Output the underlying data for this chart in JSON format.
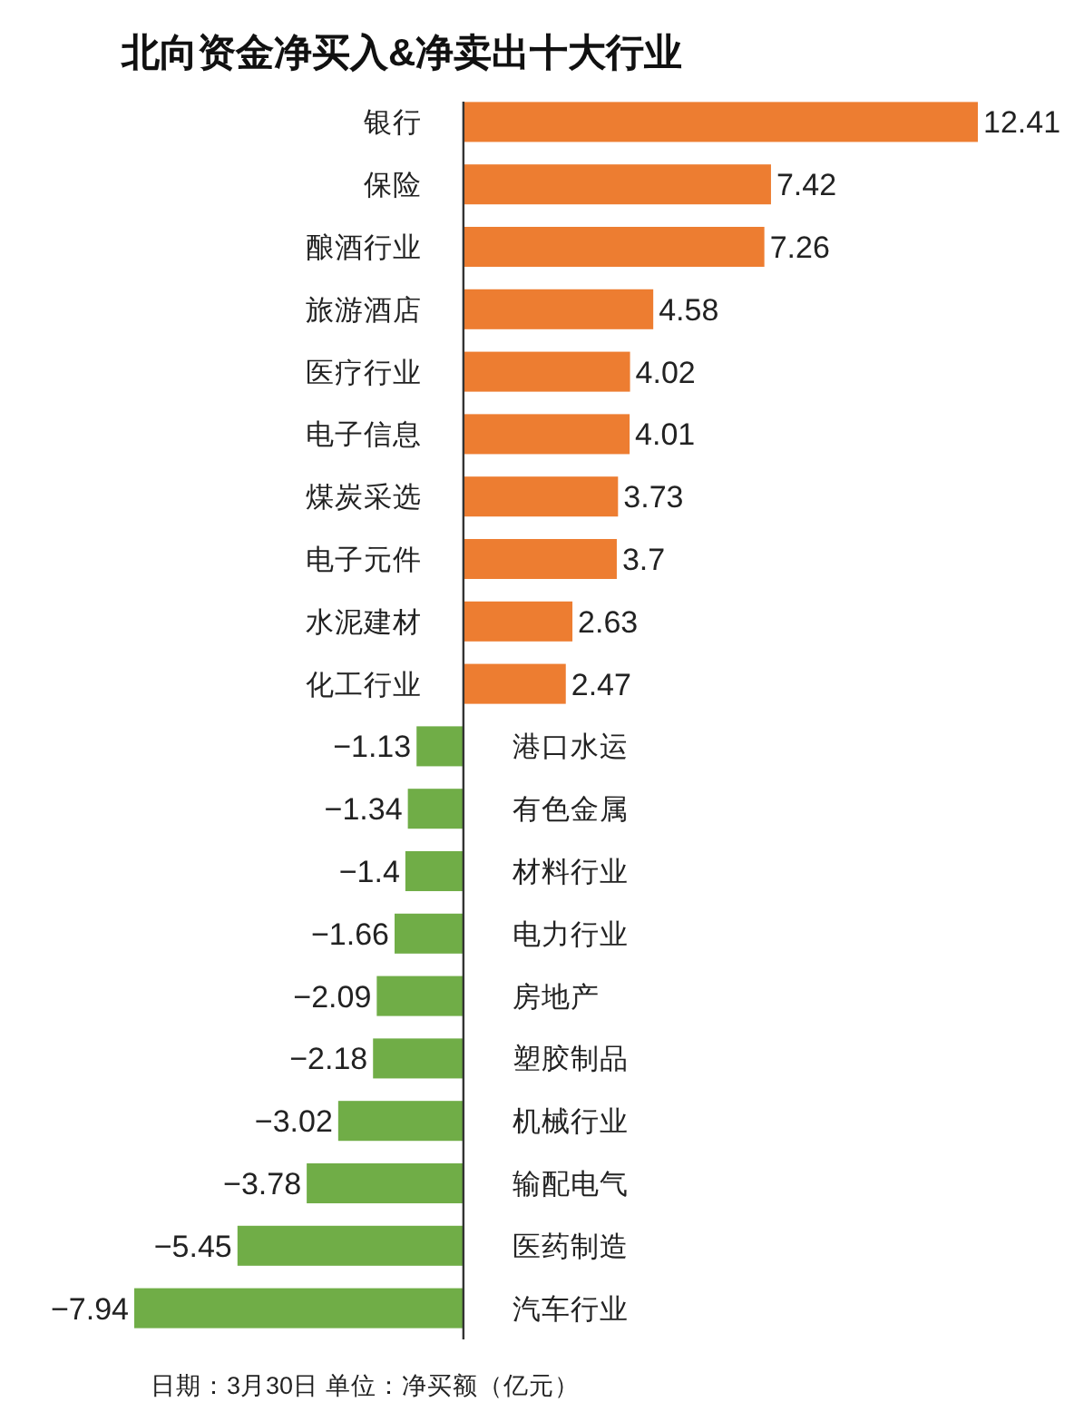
{
  "chart_data": {
    "type": "bar",
    "orientation": "horizontal",
    "title": "北向资金净买入&净卖出十大行业",
    "categories": [
      "银行",
      "保险",
      "酿酒行业",
      "旅游酒店",
      "医疗行业",
      "电子信息",
      "煤炭采选",
      "电子元件",
      "水泥建材",
      "化工行业",
      "港口水运",
      "有色金属",
      "材料行业",
      "电力行业",
      "房地产",
      "塑胶制品",
      "机械行业",
      "输配电气",
      "医药制造",
      "汽车行业"
    ],
    "values": [
      12.41,
      7.42,
      7.26,
      4.58,
      4.02,
      4.01,
      3.73,
      3.7,
      2.63,
      2.47,
      -1.13,
      -1.34,
      -1.4,
      -1.66,
      -2.09,
      -2.18,
      -3.02,
      -3.78,
      -5.45,
      -7.94
    ],
    "colors": [
      "#ed7d31",
      "#ed7d31",
      "#ed7d31",
      "#ed7d31",
      "#ed7d31",
      "#ed7d31",
      "#ed7d31",
      "#ed7d31",
      "#ed7d31",
      "#ed7d31",
      "#70ad47",
      "#70ad47",
      "#70ad47",
      "#70ad47",
      "#70ad47",
      "#70ad47",
      "#70ad47",
      "#70ad47",
      "#70ad47",
      "#70ad47"
    ],
    "data_labels": true,
    "annotations": [
      "日期：3月30日 单位：净买额（亿元）"
    ]
  }
}
